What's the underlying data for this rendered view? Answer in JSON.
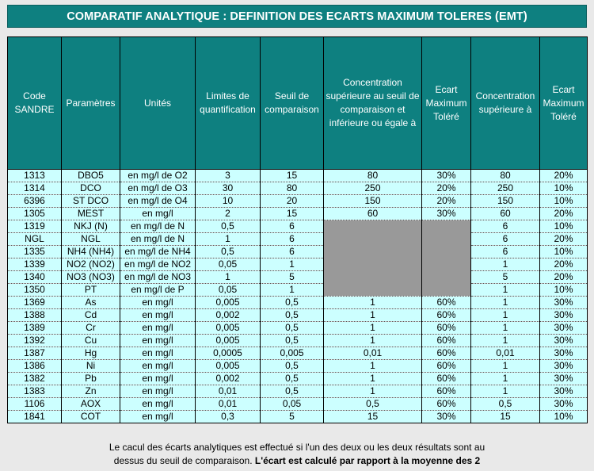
{
  "title": "COMPARATIF ANALYTIQUE : DEFINITION DES ECARTS MAXIMUM TOLERES (EMT)",
  "headers": [
    "Code SANDRE",
    "Paramètres",
    "Unités",
    "Limites de quantification",
    "Seuil de comparaison",
    "Concentration supérieure au seuil de comparaison et inférieure ou égale à",
    "Ecart Maximum Toléré",
    "Concentration supérieure à",
    "Ecart Maximum Toléré"
  ],
  "colors": {
    "header_bg": "#0e8080",
    "cell_bg": "#ccffff",
    "blank_bg": "#999999"
  },
  "rows": [
    [
      "1313",
      "DBO5",
      "en mg/l de O2",
      "3",
      "15",
      "80",
      "30%",
      "80",
      "20%"
    ],
    [
      "1314",
      "DCO",
      "en mg/l de O3",
      "30",
      "80",
      "250",
      "20%",
      "250",
      "10%"
    ],
    [
      "6396",
      "ST DCO",
      "en mg/l de O4",
      "10",
      "20",
      "150",
      "20%",
      "150",
      "10%"
    ],
    [
      "1305",
      "MEST",
      "en mg/l",
      "2",
      "15",
      "60",
      "30%",
      "60",
      "20%"
    ],
    [
      "1319",
      "NKJ (N)",
      "en mg/l de N",
      "0,5",
      "6",
      "",
      "",
      "6",
      "10%"
    ],
    [
      "NGL",
      "NGL",
      "en mg/l de N",
      "1",
      "6",
      "",
      "",
      "6",
      "20%"
    ],
    [
      "1335",
      "NH4 (NH4)",
      "en mg/l de NH4",
      "0,5",
      "6",
      "",
      "",
      "6",
      "10%"
    ],
    [
      "1339",
      "NO2 (NO2)",
      "en mg/l de NO2",
      "0,05",
      "1",
      "",
      "",
      "1",
      "20%"
    ],
    [
      "1340",
      "NO3 (NO3)",
      "en mg/l de NO3",
      "1",
      "5",
      "",
      "",
      "5",
      "20%"
    ],
    [
      "1350",
      "PT",
      "en mg/l de P",
      "0,05",
      "1",
      "",
      "",
      "1",
      "10%"
    ],
    [
      "1369",
      "As",
      "en mg/l",
      "0,005",
      "0,5",
      "1",
      "60%",
      "1",
      "30%"
    ],
    [
      "1388",
      "Cd",
      "en mg/l",
      "0,002",
      "0,5",
      "1",
      "60%",
      "1",
      "30%"
    ],
    [
      "1389",
      "Cr",
      "en mg/l",
      "0,005",
      "0,5",
      "1",
      "60%",
      "1",
      "30%"
    ],
    [
      "1392",
      "Cu",
      "en mg/l",
      "0,005",
      "0,5",
      "1",
      "60%",
      "1",
      "30%"
    ],
    [
      "1387",
      "Hg",
      "en mg/l",
      "0,0005",
      "0,005",
      "0,01",
      "60%",
      "0,01",
      "30%"
    ],
    [
      "1386",
      "Ni",
      "en mg/l",
      "0,005",
      "0,5",
      "1",
      "60%",
      "1",
      "30%"
    ],
    [
      "1382",
      "Pb",
      "en mg/l",
      "0,002",
      "0,5",
      "1",
      "60%",
      "1",
      "30%"
    ],
    [
      "1383",
      "Zn",
      "en mg/l",
      "0,01",
      "0,5",
      "1",
      "60%",
      "1",
      "30%"
    ],
    [
      "1106",
      "AOX",
      "en mg/l",
      "0,01",
      "0,05",
      "0,5",
      "60%",
      "0,5",
      "30%"
    ],
    [
      "1841",
      "COT",
      "en mg/l",
      "0,3",
      "5",
      "15",
      "30%",
      "15",
      "10%"
    ]
  ],
  "note": {
    "line1": "Le cacul des écarts analytiques est effectué si l'un des deux ou les deux résultats sont au",
    "line2_plain": "dessus du seuil de comparaison. ",
    "line2_bold": "L'écart est calculé par rapport à la moyenne des 2"
  }
}
